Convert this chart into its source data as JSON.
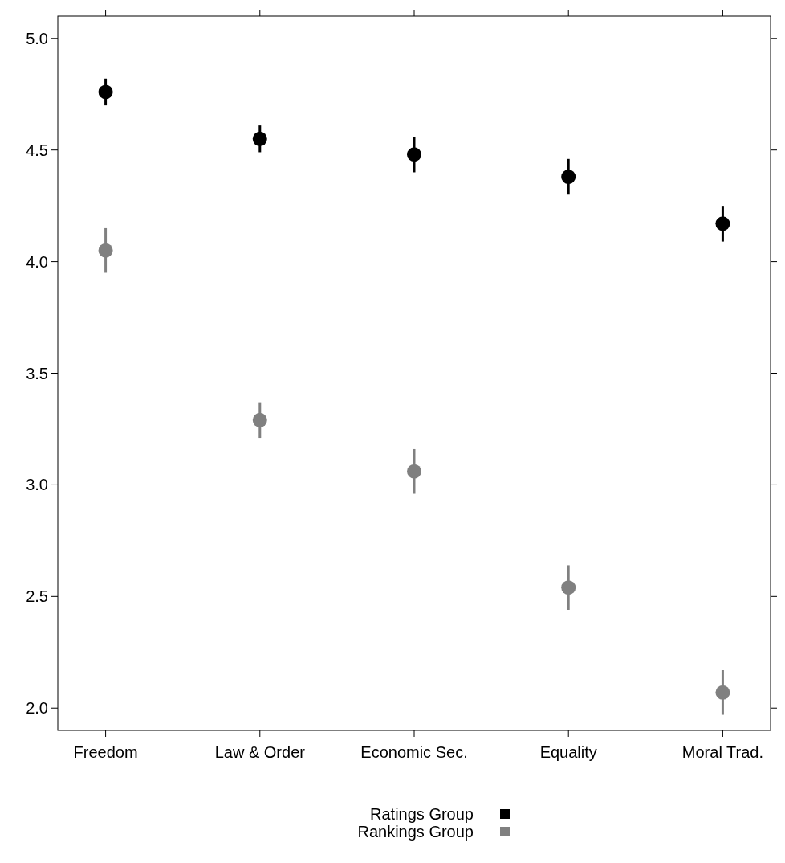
{
  "chart_data": {
    "type": "scatter",
    "categories": [
      "Freedom",
      "Law & Order",
      "Economic Sec.",
      "Equality",
      "Moral Trad."
    ],
    "series": [
      {
        "name": "Ratings Group",
        "color": "#000000",
        "values": [
          4.76,
          4.55,
          4.48,
          4.38,
          4.17
        ],
        "errors": [
          [
            4.7,
            4.82
          ],
          [
            4.49,
            4.61
          ],
          [
            4.4,
            4.56
          ],
          [
            4.3,
            4.46
          ],
          [
            4.09,
            4.25
          ]
        ]
      },
      {
        "name": "Rankings Group",
        "color": "#808080",
        "values": [
          4.05,
          3.29,
          3.06,
          2.54,
          2.07
        ],
        "errors": [
          [
            3.95,
            4.15
          ],
          [
            3.21,
            3.37
          ],
          [
            2.96,
            3.16
          ],
          [
            2.44,
            2.64
          ],
          [
            1.97,
            2.17
          ]
        ]
      }
    ],
    "ylim": [
      1.9,
      5.1
    ],
    "yticks": [
      {
        "value": 2,
        "label": "2.0"
      },
      {
        "value": 2.5,
        "label": "2.5"
      },
      {
        "value": 3,
        "label": "3.0"
      },
      {
        "value": 3.5,
        "label": "3.5"
      },
      {
        "value": 4,
        "label": "4.0"
      },
      {
        "value": 4.5,
        "label": "4.5"
      },
      {
        "value": 5,
        "label": "5.0"
      }
    ],
    "marker": "circle",
    "legend": "bottom",
    "grid": false
  }
}
